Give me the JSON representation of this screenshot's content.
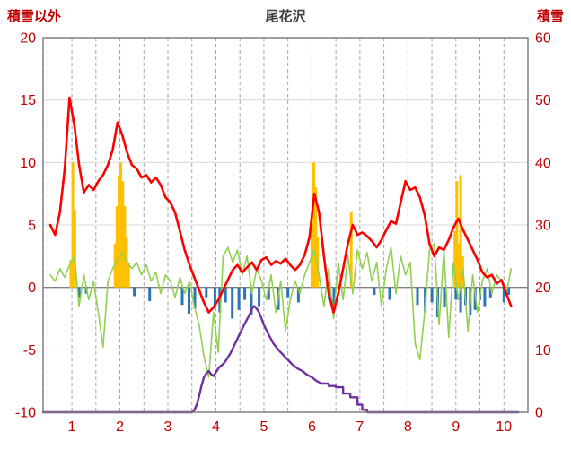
{
  "chart_data": {
    "type": "combo",
    "title": "尾花沢",
    "x_axis": {
      "min": 0.4,
      "max": 10.5,
      "grid_step": 0.5,
      "tick_labels": [
        1,
        2,
        3,
        4,
        5,
        6,
        7,
        8,
        9,
        10
      ]
    },
    "left_axis": {
      "label": "積雪以外",
      "min": -10,
      "max": 20,
      "tick_step": 5,
      "tick_labels": [
        20,
        15,
        10,
        5,
        0,
        -5,
        -10
      ]
    },
    "right_axis": {
      "label": "積雪",
      "min": 0,
      "max": 60,
      "tick_step": 10,
      "tick_labels": [
        60,
        50,
        40,
        30,
        20,
        10,
        0
      ]
    },
    "legend": "off",
    "colors": {
      "red_line": "#FF0000",
      "green_line": "#92D050",
      "purple_line": "#7030A0",
      "orange_bars": "#FFC000",
      "blue_bars": "#2E75B6",
      "grid": "#D9D9D9",
      "grid_dashed": "#A6A6A6",
      "zero_line": "#808080",
      "frame": "#7F7F7F",
      "tick_text": "#C00000",
      "title_text": "#404040"
    },
    "series": [
      {
        "name": "orange-bars",
        "type": "bar",
        "axis": "left",
        "color_key": "orange_bars",
        "points": [
          [
            0.98,
            2.2
          ],
          [
            1.02,
            10.0
          ],
          [
            1.06,
            6.2
          ],
          [
            1.9,
            3.5
          ],
          [
            1.94,
            6.5
          ],
          [
            1.98,
            9.0
          ],
          [
            2.02,
            10.0
          ],
          [
            2.06,
            8.5
          ],
          [
            2.1,
            6.5
          ],
          [
            2.14,
            4.0
          ],
          [
            2.18,
            2.0
          ],
          [
            6.0,
            5.5
          ],
          [
            6.04,
            10.0
          ],
          [
            6.08,
            8.0
          ],
          [
            6.12,
            4.0
          ],
          [
            6.82,
            6.0
          ],
          [
            8.98,
            4.5
          ],
          [
            9.02,
            8.5
          ],
          [
            9.06,
            3.5
          ],
          [
            9.1,
            9.0
          ],
          [
            9.14,
            2.5
          ]
        ]
      },
      {
        "name": "blue-bars",
        "type": "bar",
        "axis": "left",
        "color_key": "blue_bars",
        "points": [
          [
            1.15,
            -0.8
          ],
          [
            1.3,
            -0.5
          ],
          [
            2.3,
            -0.7
          ],
          [
            2.62,
            -1.1
          ],
          [
            3.3,
            -1.4
          ],
          [
            3.44,
            -2.1
          ],
          [
            3.56,
            -1.7
          ],
          [
            3.8,
            -0.8
          ],
          [
            3.98,
            -1.5
          ],
          [
            4.08,
            -2.0
          ],
          [
            4.2,
            -1.2
          ],
          [
            4.34,
            -2.5
          ],
          [
            4.48,
            -1.8
          ],
          [
            4.6,
            -1.0
          ],
          [
            4.74,
            -2.2
          ],
          [
            4.9,
            -1.5
          ],
          [
            5.1,
            -1.0
          ],
          [
            5.3,
            -1.8
          ],
          [
            5.5,
            -0.8
          ],
          [
            5.72,
            -1.2
          ],
          [
            6.36,
            -1.0
          ],
          [
            6.46,
            -1.5
          ],
          [
            7.3,
            -0.6
          ],
          [
            7.62,
            -1.0
          ],
          [
            8.2,
            -1.4
          ],
          [
            8.36,
            -2.0
          ],
          [
            8.5,
            -1.2
          ],
          [
            8.62,
            -2.4
          ],
          [
            8.76,
            -1.6
          ],
          [
            9.0,
            -1.0
          ],
          [
            9.1,
            -2.0
          ],
          [
            9.2,
            -1.4
          ],
          [
            9.3,
            -2.2
          ],
          [
            9.4,
            -1.8
          ],
          [
            9.5,
            -1.0
          ],
          [
            9.6,
            -1.5
          ],
          [
            9.72,
            -0.8
          ],
          [
            10.0,
            -1.2
          ],
          [
            10.1,
            -0.6
          ]
        ]
      },
      {
        "name": "green-line",
        "type": "line",
        "axis": "left",
        "color_key": "green_line",
        "width": 1.6,
        "x0": 0.55,
        "dx": 0.1,
        "y": [
          1.0,
          0.5,
          1.5,
          0.8,
          1.8,
          2.5,
          -1.5,
          1.0,
          -1.0,
          0.5,
          -2.0,
          -4.8,
          0.5,
          1.5,
          2.2,
          2.8,
          2.0,
          1.5,
          2.0,
          1.0,
          1.8,
          0.5,
          1.2,
          -0.5,
          1.0,
          0.5,
          -0.8,
          0.8,
          -0.5,
          0.5,
          -1.5,
          -3.0,
          -5.5,
          -7.2,
          -2.0,
          -5.2,
          2.5,
          3.2,
          2.0,
          3.0,
          1.0,
          2.5,
          -0.5,
          1.5,
          0.5,
          -1.0,
          1.0,
          -2.0,
          0.5,
          -3.5,
          -1.0,
          0.5,
          -0.5,
          1.0,
          2.0,
          3.0,
          1.0,
          -1.5,
          1.5,
          -2.5,
          2.0,
          -1.0,
          2.5,
          -0.5,
          3.0,
          1.5,
          2.8,
          0.5,
          2.0,
          -1.5,
          1.5,
          3.2,
          -0.5,
          2.5,
          1.0,
          2.0,
          -4.5,
          -5.8,
          -2.0,
          3.0,
          3.5,
          -3.0,
          3.0,
          -4.0,
          2.0,
          -1.0,
          1.5,
          -3.5,
          1.0,
          -2.0,
          0.5,
          1.5,
          -0.5,
          1.0,
          0.5,
          -0.5,
          1.5
        ]
      },
      {
        "name": "red-line",
        "type": "line",
        "axis": "left",
        "color_key": "red_line",
        "width": 2.6,
        "x0": 0.55,
        "dx": 0.1,
        "y": [
          5.0,
          4.2,
          6.0,
          9.5,
          15.2,
          13.0,
          9.8,
          7.6,
          8.2,
          7.8,
          8.5,
          9.0,
          9.8,
          11.0,
          13.2,
          12.2,
          10.8,
          9.8,
          9.5,
          8.8,
          9.0,
          8.4,
          8.8,
          8.2,
          7.2,
          6.8,
          6.0,
          4.5,
          3.0,
          1.8,
          0.8,
          -0.2,
          -1.2,
          -2.0,
          -1.6,
          -1.0,
          -0.2,
          0.6,
          1.4,
          1.8,
          1.2,
          1.6,
          2.0,
          1.4,
          2.2,
          2.4,
          1.8,
          2.1,
          1.9,
          2.3,
          1.8,
          1.4,
          1.8,
          2.6,
          4.0,
          7.5,
          6.0,
          2.5,
          -0.5,
          -2.0,
          -0.5,
          1.5,
          3.5,
          5.0,
          4.2,
          4.4,
          4.1,
          3.7,
          3.2,
          3.8,
          4.6,
          5.3,
          5.1,
          6.8,
          8.5,
          7.8,
          8.0,
          7.2,
          5.8,
          3.5,
          2.5,
          3.2,
          3.0,
          3.8,
          4.8,
          5.5,
          4.6,
          3.8,
          3.0,
          2.2,
          1.2,
          0.8,
          1.0,
          0.3,
          0.6,
          -0.5,
          -1.5
        ]
      },
      {
        "name": "purple-snow-depth-line",
        "type": "line",
        "axis": "right",
        "color_key": "purple_line",
        "width": 2.4,
        "points": [
          [
            0.4,
            0
          ],
          [
            3.5,
            0
          ],
          [
            3.55,
            0.3
          ],
          [
            3.6,
            1.2
          ],
          [
            3.65,
            2.6
          ],
          [
            3.7,
            4.2
          ],
          [
            3.75,
            5.6
          ],
          [
            3.8,
            6.2
          ],
          [
            3.85,
            6.6
          ],
          [
            3.9,
            6.1
          ],
          [
            3.95,
            5.8
          ],
          [
            4.0,
            6.4
          ],
          [
            4.05,
            7.0
          ],
          [
            4.1,
            7.4
          ],
          [
            4.15,
            7.7
          ],
          [
            4.2,
            8.2
          ],
          [
            4.3,
            9.4
          ],
          [
            4.4,
            11.0
          ],
          [
            4.5,
            12.6
          ],
          [
            4.6,
            14.2
          ],
          [
            4.7,
            15.6
          ],
          [
            4.75,
            16.6
          ],
          [
            4.8,
            17.0
          ],
          [
            4.85,
            16.6
          ],
          [
            4.9,
            16.0
          ],
          [
            4.95,
            15.0
          ],
          [
            5.0,
            14.0
          ],
          [
            5.1,
            12.4
          ],
          [
            5.2,
            11.0
          ],
          [
            5.3,
            10.0
          ],
          [
            5.4,
            9.2
          ],
          [
            5.5,
            8.4
          ],
          [
            5.6,
            7.6
          ],
          [
            5.7,
            7.0
          ],
          [
            5.8,
            6.6
          ],
          [
            5.9,
            6.0
          ],
          [
            6.0,
            5.6
          ],
          [
            6.1,
            5.0
          ],
          [
            6.2,
            4.6
          ],
          [
            6.35,
            4.6
          ],
          [
            6.35,
            4.2
          ],
          [
            6.5,
            4.2
          ],
          [
            6.5,
            4.0
          ],
          [
            6.65,
            4.0
          ],
          [
            6.65,
            3.0
          ],
          [
            6.8,
            3.0
          ],
          [
            6.8,
            2.4
          ],
          [
            6.95,
            2.4
          ],
          [
            6.95,
            1.2
          ],
          [
            7.05,
            1.2
          ],
          [
            7.05,
            0.4
          ],
          [
            7.15,
            0.4
          ],
          [
            7.15,
            0
          ],
          [
            10.3,
            0
          ]
        ]
      }
    ]
  }
}
